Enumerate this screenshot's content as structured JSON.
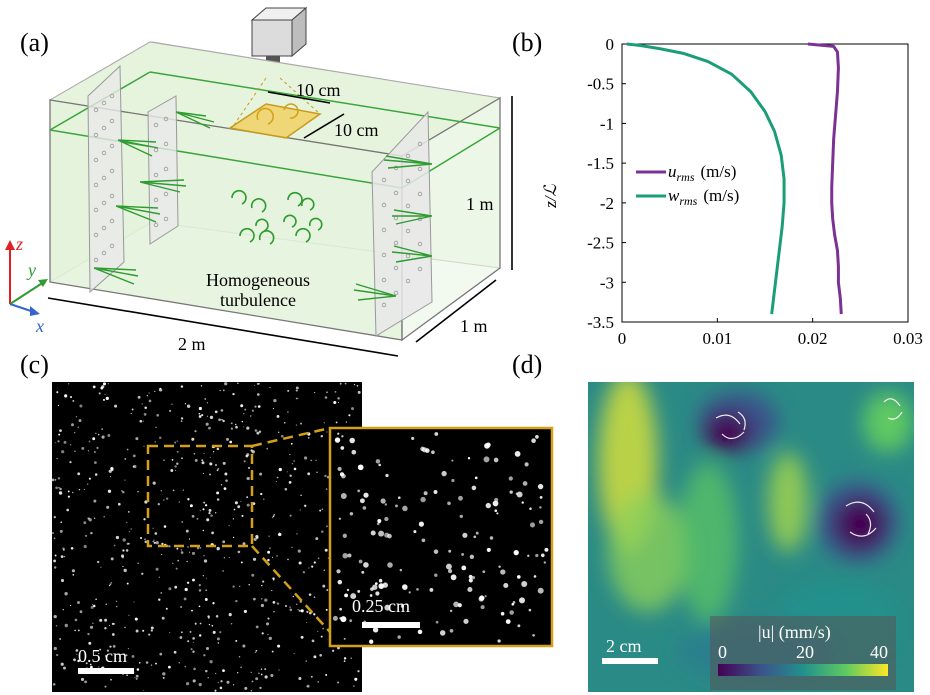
{
  "panels": {
    "a": "(a)",
    "b": "(b)",
    "c": "(c)",
    "d": "(d)"
  },
  "tank": {
    "patch_w": "10 cm",
    "patch_h": "10 cm",
    "height": "1 m",
    "depth": "1 m",
    "length": "2 m",
    "center_label_1": "Homogeneous",
    "center_label_2": "turbulence",
    "axis_z": "z",
    "axis_y": "y",
    "axis_x": "x",
    "colors": {
      "water": "#e8f5e0",
      "frame": "#3aa63a",
      "patch": "#f2c94c",
      "jet": "#2e9c2e"
    }
  },
  "profile": {
    "ylabel": "z/ℒ",
    "legend": [
      {
        "name": "u",
        "sub": "rms",
        "unit": "(m/s)",
        "color": "#7b3294"
      },
      {
        "name": "w",
        "sub": "rms",
        "unit": "(m/s)",
        "color": "#1b9e77"
      }
    ],
    "xticks": [
      "0",
      "0.01",
      "0.02",
      "0.03"
    ],
    "yticks": [
      "0",
      "-0.5",
      "-1",
      "-1.5",
      "-2",
      "-2.5",
      "-3",
      "-3.5"
    ]
  },
  "chart_data": {
    "type": "line",
    "title": "",
    "xlabel": "",
    "ylabel": "z/ℒ",
    "xlim": [
      0,
      0.03
    ],
    "ylim": [
      -3.5,
      0
    ],
    "legend_position": "middle-left",
    "series": [
      {
        "name": "u_rms (m/s)",
        "color": "#7b3294",
        "x": [
          0.0195,
          0.0222,
          0.0226,
          0.0227,
          0.0226,
          0.0224,
          0.0222,
          0.0221,
          0.022,
          0.022,
          0.0221,
          0.0223,
          0.0226,
          0.0227,
          0.0227,
          0.0229,
          0.023
        ],
        "y": [
          0,
          -0.03,
          -0.1,
          -0.3,
          -0.6,
          -0.9,
          -1.2,
          -1.5,
          -1.8,
          -2.0,
          -2.2,
          -2.4,
          -2.6,
          -2.8,
          -3.0,
          -3.2,
          -3.4
        ]
      },
      {
        "name": "w_rms (m/s)",
        "color": "#1b9e77",
        "x": [
          0.0005,
          0.002,
          0.004,
          0.0065,
          0.009,
          0.0115,
          0.0135,
          0.015,
          0.016,
          0.0167,
          0.017,
          0.017,
          0.0168,
          0.0165,
          0.0162,
          0.016,
          0.0158,
          0.0157
        ],
        "y": [
          0,
          -0.02,
          -0.06,
          -0.12,
          -0.22,
          -0.38,
          -0.6,
          -0.85,
          -1.1,
          -1.4,
          -1.7,
          -2.0,
          -2.3,
          -2.6,
          -2.9,
          -3.1,
          -3.3,
          -3.4
        ]
      }
    ]
  },
  "particles": {
    "scale_main": "0.5 cm",
    "scale_zoom": "0.25 cm",
    "frame_color": "#d4a017"
  },
  "velocity": {
    "scale": "2 cm",
    "colorbar_label": "|u|  (mm/s)",
    "colorbar_ticks": [
      "0",
      "20",
      "40"
    ]
  }
}
